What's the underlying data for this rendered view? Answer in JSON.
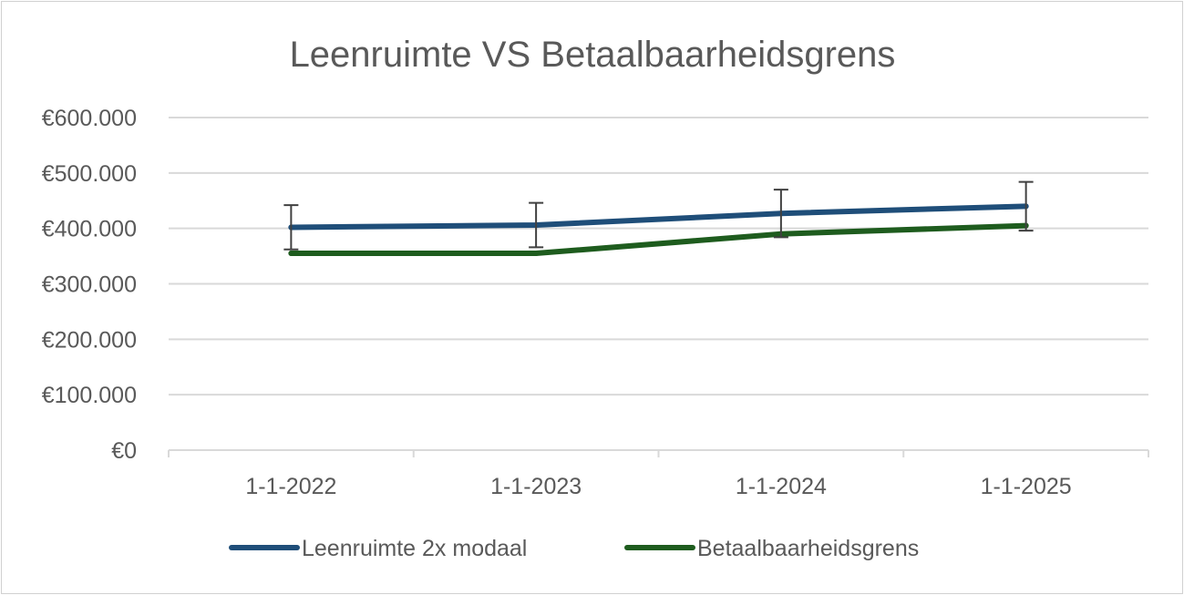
{
  "chart_data": {
    "type": "line",
    "title": "Leenruimte VS Betaalbaarheidsgrens",
    "xlabel": "",
    "ylabel": "",
    "categories": [
      "1-1-2022",
      "1-1-2023",
      "1-1-2024",
      "1-1-2025"
    ],
    "y_ticks": [
      {
        "value": 0,
        "label": "€0"
      },
      {
        "value": 100000,
        "label": "€100.000"
      },
      {
        "value": 200000,
        "label": "€200.000"
      },
      {
        "value": 300000,
        "label": "€300.000"
      },
      {
        "value": 400000,
        "label": "€400.000"
      },
      {
        "value": 500000,
        "label": "€500.000"
      },
      {
        "value": 600000,
        "label": "€600.000"
      }
    ],
    "ylim": [
      0,
      600000
    ],
    "grid": true,
    "legend_position": "bottom",
    "series": [
      {
        "name": "Leenruimte 2x modaal",
        "color": "#1f4e79",
        "values": [
          402000,
          406000,
          427000,
          440000
        ],
        "error_bars": {
          "plus": [
            40000,
            40000,
            43000,
            44000
          ],
          "minus": [
            40000,
            40000,
            43000,
            44000
          ]
        }
      },
      {
        "name": "Betaalbaarheidsgrens",
        "color": "#1e5c1e",
        "values": [
          355000,
          355000,
          390000,
          405000
        ]
      }
    ],
    "error_bar_color": "#404040",
    "gridline_color": "#d9d9d9"
  }
}
